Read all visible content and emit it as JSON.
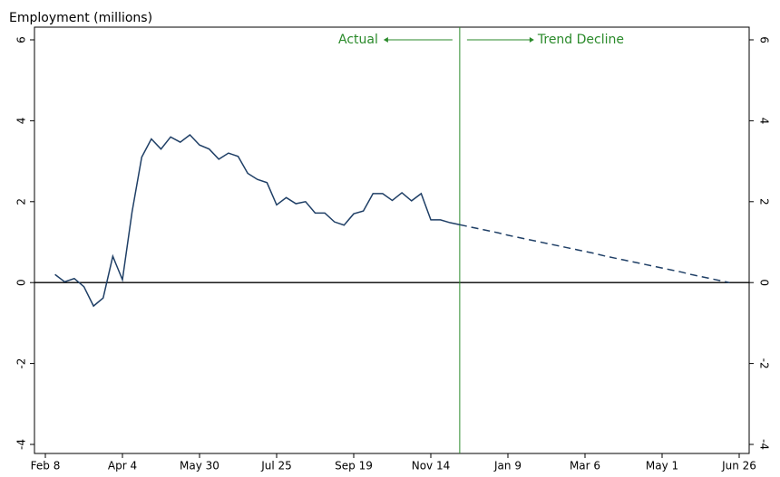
{
  "chart_data": {
    "type": "line",
    "y_label": "Employment (millions)",
    "categories": [
      "Feb 8",
      null,
      null,
      null,
      null,
      null,
      null,
      null,
      "Apr 4",
      null,
      null,
      null,
      null,
      null,
      null,
      null,
      "May 30",
      null,
      null,
      null,
      null,
      null,
      null,
      null,
      "Jul 25",
      null,
      null,
      null,
      null,
      null,
      null,
      null,
      "Sep 19",
      null,
      null,
      null,
      null,
      null,
      null,
      null,
      "Nov 14",
      null,
      null,
      null,
      null,
      null,
      null,
      null,
      "Jan 9",
      null,
      null,
      null,
      null,
      null,
      null,
      null,
      "Mar 6",
      null,
      null,
      null,
      null,
      null,
      null,
      null,
      "May 1",
      null,
      null,
      null,
      null,
      null,
      null,
      null,
      "Jun 26"
    ],
    "series": [
      {
        "name": "Actual",
        "color": "#1f3f66",
        "dash": false,
        "values": [
          null,
          0.2,
          0.02,
          0.1,
          -0.1,
          -0.58,
          -0.38,
          0.65,
          0.07,
          1.75,
          3.1,
          3.55,
          3.3,
          3.6,
          3.47,
          3.65,
          3.4,
          3.3,
          3.05,
          3.2,
          3.12,
          2.7,
          2.55,
          2.47,
          1.92,
          2.1,
          1.95,
          2.0,
          1.72,
          1.72,
          1.5,
          1.42,
          1.7,
          1.77,
          2.2,
          2.2,
          2.03,
          2.22,
          2.02,
          2.2,
          1.55,
          1.55,
          1.48,
          1.43,
          null,
          null,
          null,
          null,
          null,
          null,
          null,
          null,
          null,
          null,
          null,
          null,
          null,
          null,
          null,
          null,
          null,
          null,
          null,
          null,
          null,
          null,
          null,
          null,
          null,
          null,
          null,
          null,
          null
        ]
      },
      {
        "name": "Trend Decline",
        "color": "#1f3f66",
        "dash": true,
        "values": [
          null,
          null,
          null,
          null,
          null,
          null,
          null,
          null,
          null,
          null,
          null,
          null,
          null,
          null,
          null,
          null,
          null,
          null,
          null,
          null,
          null,
          null,
          null,
          null,
          null,
          null,
          null,
          null,
          null,
          null,
          null,
          null,
          null,
          null,
          null,
          null,
          null,
          null,
          null,
          null,
          null,
          null,
          null,
          1.43,
          1.38,
          1.33,
          1.28,
          1.23,
          1.17,
          1.12,
          1.07,
          1.02,
          0.97,
          0.92,
          0.87,
          0.82,
          0.77,
          0.72,
          0.66,
          0.61,
          0.56,
          0.51,
          0.46,
          0.41,
          0.36,
          0.31,
          0.26,
          0.2,
          0.15,
          0.1,
          0.05,
          0,
          null
        ]
      }
    ],
    "ylim": [
      -4,
      6
    ],
    "yticks": [
      -4,
      -2,
      0,
      2,
      4,
      6
    ],
    "annotation_color": "#2a8a2a"
  }
}
